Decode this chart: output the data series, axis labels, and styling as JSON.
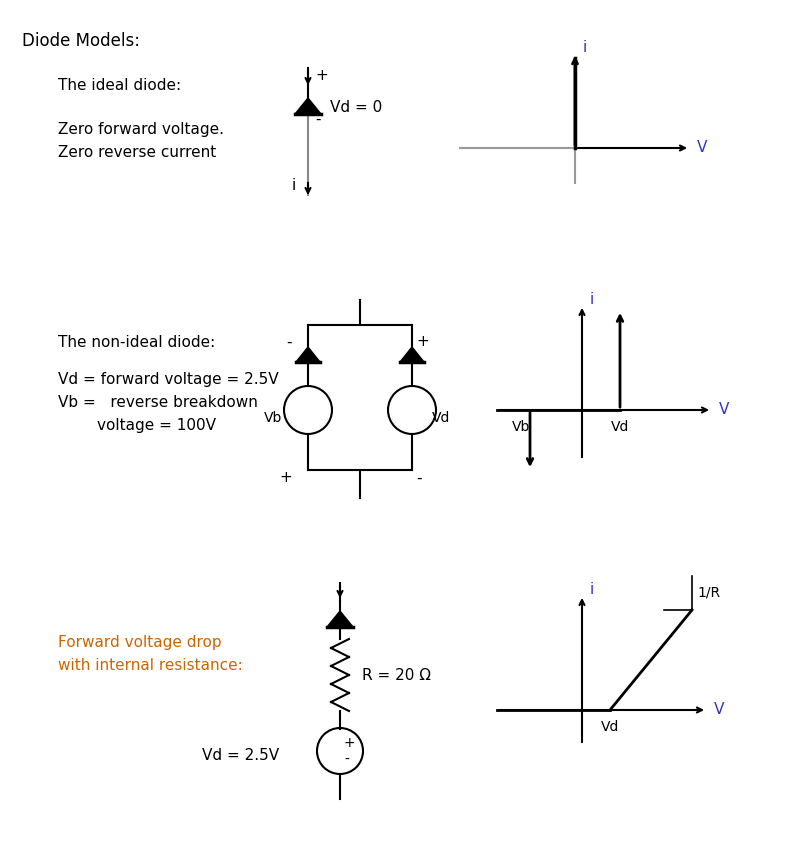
{
  "bg_color": "#ffffff",
  "text_color": "#000000",
  "section3_title_color": "#cc6600",
  "graph_label_color": "#3366cc",
  "header": "Diode Models:",
  "s1_title": "The ideal diode:",
  "s1_desc1": "Zero forward voltage.",
  "s1_desc2": "Zero reverse current",
  "s1_vd": "Vd = 0",
  "s1_plus": "+",
  "s1_minus": "-",
  "s1_i": "i",
  "s2_title": "The non-ideal diode:",
  "s2_desc1": "Vd = forward voltage = 2.5V",
  "s2_desc2": "Vb =   reverse breakdown",
  "s2_desc3": "        voltage = 100V",
  "s2_vb": "Vb",
  "s2_vd": "Vd",
  "s2_plus_tl": "-",
  "s2_plus_tr": "+",
  "s2_plus_bl": "+",
  "s2_minus_br": "-",
  "s3_title": "Forward voltage drop",
  "s3_desc": "with internal resistance:",
  "s3_r": "R = 20 Ω",
  "s3_vd": "Vd = 2.5V",
  "s3_plus": "+",
  "s3_minus": "-",
  "g1_i": "i",
  "g1_v": "V",
  "g2_i": "i",
  "g2_v": "V",
  "g2_vb": "Vb",
  "g2_vd": "Vd",
  "g3_i": "i",
  "g3_v": "V",
  "g3_vd": "Vd",
  "g3_slope": "1/R"
}
